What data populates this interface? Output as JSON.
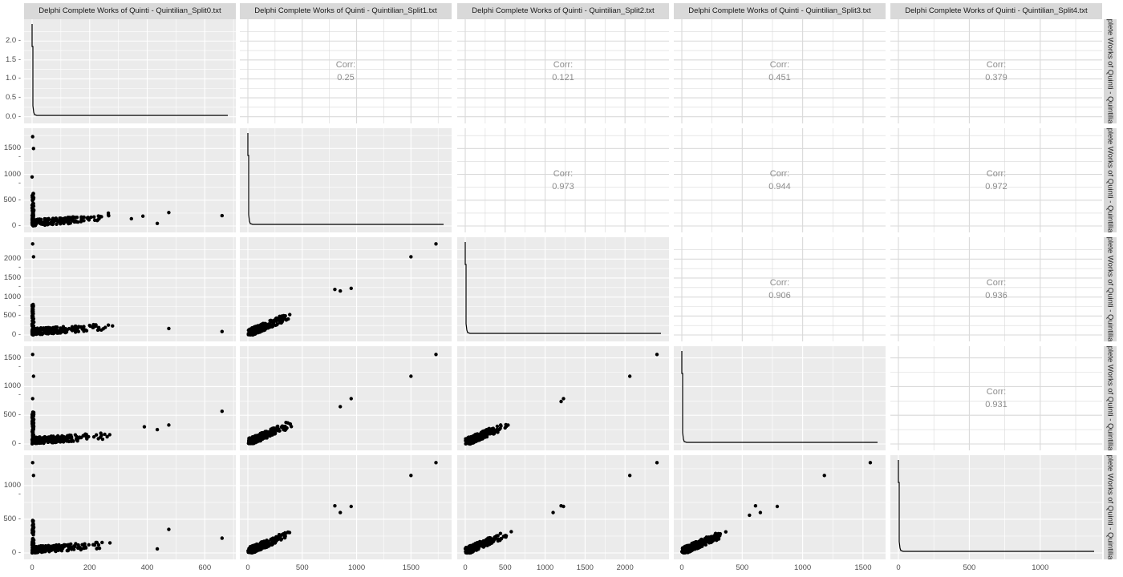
{
  "chart_data": {
    "type": "scatter-matrix",
    "title": "",
    "variables": [
      "Delphi Complete Works of Quinti - Quintilian_Split0.txt",
      "Delphi Complete Works of Quinti - Quintilian_Split1.txt",
      "Delphi Complete Works of Quinti - Quintilian_Split2.txt",
      "Delphi Complete Works of Quinti - Quintilian_Split3.txt",
      "Delphi Complete Works of Quinti - Quintilian_Split4.txt"
    ],
    "row_strip_label": "plete Works of Quinti - Quintilia",
    "corr_label": "Corr:",
    "correlations": [
      {
        "row": 0,
        "col": 1,
        "value": "0.25"
      },
      {
        "row": 0,
        "col": 2,
        "value": "0.121"
      },
      {
        "row": 0,
        "col": 3,
        "value": "0.451"
      },
      {
        "row": 0,
        "col": 4,
        "value": "0.379"
      },
      {
        "row": 1,
        "col": 2,
        "value": "0.973"
      },
      {
        "row": 1,
        "col": 3,
        "value": "0.944"
      },
      {
        "row": 1,
        "col": 4,
        "value": "0.972"
      },
      {
        "row": 2,
        "col": 3,
        "value": "0.906"
      },
      {
        "row": 2,
        "col": 4,
        "value": "0.936"
      },
      {
        "row": 3,
        "col": 4,
        "value": "0.931"
      }
    ],
    "axes": {
      "x_ticks": [
        {
          "labels": [
            "0",
            "200",
            "400",
            "600"
          ],
          "max": 680
        },
        {
          "labels": [
            "0",
            "500",
            "1000",
            "1500"
          ],
          "max": 1800
        },
        {
          "labels": [
            "0",
            "500",
            "1000",
            "1500",
            "2000"
          ],
          "max": 2450
        },
        {
          "labels": [
            "0",
            "500",
            "1000",
            "1500"
          ],
          "max": 1620
        },
        {
          "labels": [
            "0",
            "500",
            "1000"
          ],
          "max": 1380
        }
      ],
      "y_ticks": [
        {
          "labels": [
            "0.0",
            "0.5",
            "1.0",
            "1.5",
            "2.0"
          ],
          "min": -0.05,
          "max": 2.45
        },
        {
          "labels": [
            "0",
            "500",
            "1000",
            "1500"
          ],
          "max": 1800
        },
        {
          "labels": [
            "0",
            "500",
            "1000",
            "1500",
            "2000"
          ],
          "max": 2450
        },
        {
          "labels": [
            "0",
            "500",
            "1000",
            "1500"
          ],
          "max": 1620
        },
        {
          "labels": [
            "0",
            "500",
            "1000"
          ],
          "max": 1380
        }
      ]
    },
    "diagonal": "density (sharp peak near 0, long flat tail)",
    "scatter_outliers": {
      "split1_vs_split0": [
        [
          2,
          1730
        ],
        [
          5,
          1500
        ],
        [
          0,
          950
        ],
        [
          265,
          250
        ],
        [
          475,
          260
        ],
        [
          660,
          200
        ],
        [
          435,
          50
        ],
        [
          385,
          190
        ],
        [
          345,
          140
        ]
      ],
      "split2_vs_split0": [
        [
          2,
          2400
        ],
        [
          5,
          2060
        ],
        [
          265,
          260
        ],
        [
          475,
          170
        ],
        [
          660,
          90
        ]
      ],
      "split3_vs_split0": [
        [
          2,
          1560
        ],
        [
          5,
          1180
        ],
        [
          2,
          790
        ],
        [
          660,
          570
        ],
        [
          475,
          330
        ],
        [
          435,
          250
        ],
        [
          390,
          300
        ]
      ],
      "split4_vs_split0": [
        [
          2,
          1340
        ],
        [
          5,
          1150
        ],
        [
          660,
          220
        ],
        [
          475,
          350
        ],
        [
          435,
          60
        ]
      ],
      "split2_vs_split1": [
        [
          1730,
          2400
        ],
        [
          1500,
          2060
        ],
        [
          950,
          1230
        ],
        [
          850,
          1160
        ],
        [
          800,
          1200
        ]
      ],
      "split3_vs_split1": [
        [
          1730,
          1560
        ],
        [
          1500,
          1180
        ],
        [
          950,
          790
        ],
        [
          850,
          650
        ]
      ],
      "split4_vs_split1": [
        [
          1730,
          1340
        ],
        [
          1500,
          1150
        ],
        [
          800,
          700
        ],
        [
          950,
          690
        ],
        [
          850,
          600
        ]
      ],
      "split3_vs_split2": [
        [
          2400,
          1560
        ],
        [
          2060,
          1180
        ],
        [
          1230,
          790
        ],
        [
          1200,
          740
        ]
      ],
      "split4_vs_split2": [
        [
          2400,
          1340
        ],
        [
          2060,
          1150
        ],
        [
          1230,
          690
        ],
        [
          1200,
          700
        ],
        [
          1100,
          600
        ]
      ],
      "split4_vs_split3": [
        [
          1560,
          1340
        ],
        [
          1180,
          1150
        ],
        [
          790,
          690
        ],
        [
          610,
          700
        ],
        [
          650,
          600
        ],
        [
          560,
          560
        ]
      ]
    },
    "grid": true,
    "background": "#ebebeb",
    "point_color": "#000000"
  }
}
